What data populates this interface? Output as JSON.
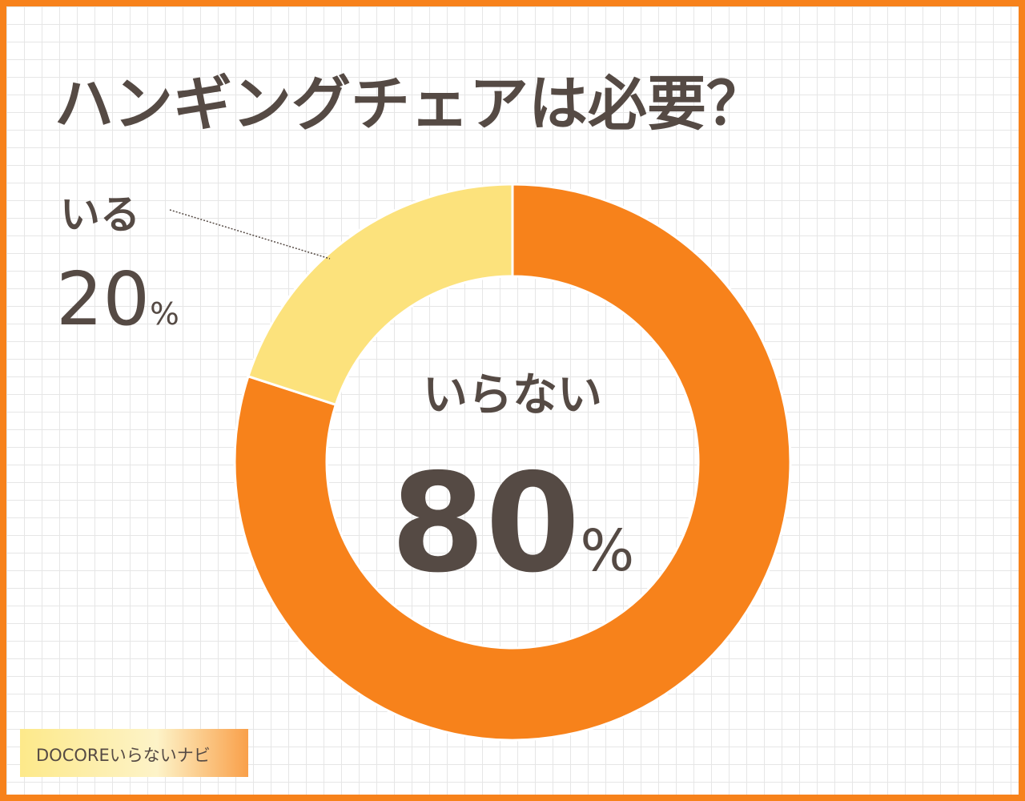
{
  "chart_data": {
    "type": "donut",
    "title": "ハンギングチェアは必要？",
    "categories": [
      "いらない",
      "いる"
    ],
    "values": [
      80,
      20
    ],
    "value_labels": [
      "80%",
      "20%"
    ],
    "colors": [
      "#f7821b",
      "#fce27c"
    ]
  },
  "watermark": "DOCOREいらないナビ"
}
